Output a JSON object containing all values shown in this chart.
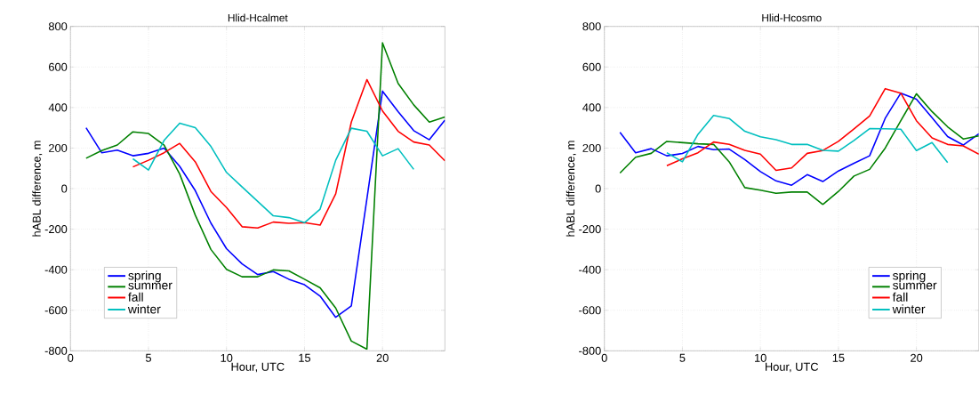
{
  "chart_data": [
    {
      "type": "line",
      "title": "Hlid-Hcalmet",
      "xlabel": "Hour, UTC",
      "ylabel": "hABL difference, m",
      "x": [
        1,
        2,
        3,
        4,
        5,
        6,
        7,
        8,
        9,
        10,
        11,
        12,
        13,
        14,
        15,
        16,
        17,
        18,
        19,
        20,
        21,
        22,
        23,
        24
      ],
      "xlim": [
        0,
        24
      ],
      "xticks": [
        0,
        5,
        10,
        15,
        20
      ],
      "ylim": [
        -800,
        800
      ],
      "yticks": [
        -800,
        -600,
        -400,
        -200,
        0,
        200,
        400,
        600,
        800
      ],
      "grid": true,
      "legend": "bottom left",
      "line_style": "solid",
      "marker": "none",
      "series": [
        {
          "name": "spring",
          "color": "#0000ff",
          "values": [
            300,
            177,
            190,
            162,
            174,
            200,
            110,
            -10,
            -170,
            -296,
            -371,
            -424,
            -409,
            -447,
            -474,
            -530,
            -635,
            -579,
            -50,
            481,
            380,
            286,
            241,
            338
          ]
        },
        {
          "name": "summer",
          "color": "#008000",
          "values": [
            150,
            188,
            215,
            280,
            272,
            215,
            72,
            -131,
            -300,
            -398,
            -435,
            -435,
            -401,
            -406,
            -447,
            -489,
            -589,
            -752,
            -792,
            719,
            519,
            413,
            328,
            353
          ]
        },
        {
          "name": "fall",
          "color": "#ff0000",
          "values": [
            null,
            null,
            null,
            107,
            140,
            177,
            223,
            132,
            -14,
            -93,
            -188,
            -194,
            -165,
            -171,
            -168,
            -180,
            -26,
            328,
            538,
            383,
            283,
            230,
            215,
            137
          ]
        },
        {
          "name": "winter",
          "color": "#00bfbf",
          "values": [
            null,
            null,
            null,
            147,
            92,
            238,
            323,
            301,
            208,
            80,
            8,
            -63,
            -134,
            -143,
            -168,
            -101,
            140,
            298,
            283,
            162,
            197,
            95,
            null,
            null
          ]
        }
      ]
    },
    {
      "type": "line",
      "title": "Hlid-Hcosmo",
      "xlabel": "Hour, UTC",
      "ylabel": "hABL difference, m",
      "x": [
        1,
        2,
        3,
        4,
        5,
        6,
        7,
        8,
        9,
        10,
        11,
        12,
        13,
        14,
        15,
        16,
        17,
        18,
        19,
        20,
        21,
        22,
        23,
        24
      ],
      "xlim": [
        0,
        24
      ],
      "xticks": [
        0,
        5,
        10,
        15,
        20
      ],
      "ylim": [
        -800,
        800
      ],
      "yticks": [
        -800,
        -600,
        -400,
        -200,
        0,
        200,
        400,
        600,
        800
      ],
      "grid": true,
      "legend": "bottom right",
      "line_style": "solid",
      "marker": "none",
      "series": [
        {
          "name": "spring",
          "color": "#0000ff",
          "values": [
            278,
            177,
            197,
            162,
            173,
            208,
            192,
            195,
            143,
            84,
            38,
            17,
            69,
            35,
            87,
            125,
            162,
            347,
            471,
            441,
            350,
            257,
            215,
            270
          ]
        },
        {
          "name": "summer",
          "color": "#008000",
          "values": [
            77,
            155,
            174,
            233,
            227,
            221,
            218,
            132,
            5,
            -8,
            -23,
            -17,
            -17,
            -78,
            -14,
            62,
            95,
            200,
            335,
            468,
            380,
            305,
            245,
            260
          ]
        },
        {
          "name": "fall",
          "color": "#ff0000",
          "values": [
            null,
            null,
            null,
            113,
            147,
            177,
            230,
            218,
            189,
            170,
            90,
            102,
            174,
            188,
            233,
            295,
            358,
            493,
            471,
            335,
            250,
            218,
            211,
            170
          ]
        },
        {
          "name": "winter",
          "color": "#00bfbf",
          "values": [
            null,
            null,
            null,
            177,
            132,
            268,
            361,
            346,
            283,
            256,
            241,
            218,
            218,
            189,
            185,
            238,
            296,
            295,
            293,
            188,
            227,
            128,
            null,
            null
          ]
        }
      ]
    }
  ]
}
